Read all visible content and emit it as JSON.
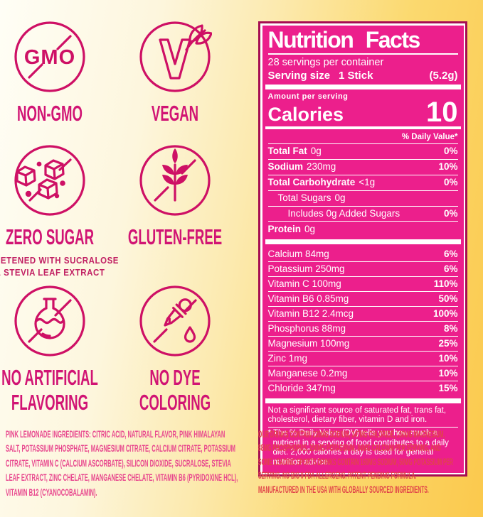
{
  "colors": {
    "panel_pink": "#ec1f8c",
    "panel_border": "#a60d52",
    "icon_stroke": "#ce1065",
    "badge_label": "#d11474",
    "ingredients_text": "#e8478e",
    "comparison_text": "#e14449",
    "background_yellow": "#fbc94d"
  },
  "badges": [
    {
      "label": "NON-GMO",
      "icon": "gmo-crossed-icon",
      "gmo_text": "GMO"
    },
    {
      "label": "VEGAN",
      "icon": "vegan-v-leaf-icon"
    },
    {
      "label": "ZERO SUGAR",
      "icon": "sugar-cubes-crossed-icon",
      "subcaption": [
        "SWEETENED WITH SUCRALOSE",
        "&  STEVIA LEAF EXTRACT"
      ]
    },
    {
      "label": "GLUTEN-FREE",
      "icon": "wheat-crossed-icon"
    },
    {
      "label": [
        "NO ARTIFICIAL",
        "FLAVORING"
      ],
      "icon": "flask-crossed-icon"
    },
    {
      "label": [
        "NO DYE",
        "COLORING"
      ],
      "icon": "dropper-crossed-icon"
    }
  ],
  "nutrition_facts": {
    "title": "Nutrition Facts",
    "servings_per_container": "28 servings per container",
    "serving_size_label": "Serving size",
    "serving_size_value": "1 Stick",
    "serving_size_weight": "(5.2g)",
    "amount_per_serving": "Amount per serving",
    "calories_label": "Calories",
    "calories_value": "10",
    "daily_value_header": "% Daily Value*",
    "rows": [
      {
        "label": "Total Fat",
        "amount": "0g",
        "dv": "0%",
        "bold": true,
        "indent": 0
      },
      {
        "label": "Sodium",
        "amount": "230mg",
        "dv": "10%",
        "bold": true,
        "indent": 0
      },
      {
        "label": "Total Carbohydrate",
        "amount": "<1g",
        "dv": "0%",
        "bold": true,
        "indent": 0
      },
      {
        "label": "Total Sugars",
        "amount": "0g",
        "dv": "",
        "bold": false,
        "indent": 1
      },
      {
        "label": "Includes 0g Added Sugars",
        "amount": "",
        "dv": "0%",
        "bold": false,
        "indent": 2
      },
      {
        "label": "Protein",
        "amount": "0g",
        "dv": "",
        "bold": true,
        "indent": 0
      }
    ],
    "micronutrients": [
      {
        "label": "Calcium 84mg",
        "dv": "6%"
      },
      {
        "label": "Potassium 250mg",
        "dv": "6%"
      },
      {
        "label": "Vitamin C 100mg",
        "dv": "110%"
      },
      {
        "label": "Vitamin B6 0.85mg",
        "dv": "50%"
      },
      {
        "label": "Vitamin B12 2.4mcg",
        "dv": "100%"
      },
      {
        "label": "Phosphorus 88mg",
        "dv": "8%"
      },
      {
        "label": "Magnesium 100mg",
        "dv": "25%"
      },
      {
        "label": "Zinc 1mg",
        "dv": "10%"
      },
      {
        "label": "Manganese 0.2mg",
        "dv": "10%"
      },
      {
        "label": "Chloride 347mg",
        "dv": "15%"
      }
    ],
    "not_significant_note": "Not a significant source of saturated fat, trans fat, cholesterol, dietary fiber, vitamin D and iron.",
    "dv_footnote": "* The % Daily Value (DV) tells you how much a nutrient in a serving of food contributes to a daily diet. 2,000 calories a day is used for general nutrition advice."
  },
  "footer": {
    "ingredients": [
      "PINK LEMONADE INGREDIENTS: CITRIC ACID, NATURAL FLAVOR, PINK HIMALAYAN",
      "SALT, POTASSIUM PHOSPHATE, MAGNESIUM CITRATE, CALCIUM CITRATE, POTASSIUM",
      "CITRATE, VITAMIN C (CALCIUM ASCORBATE), SILICON DIOXIDE, SUCRALOSE, STEVIA",
      "LEAF EXTRACT, ZINC CHELATE, MANGANESE CHELATE, VITAMIN B6 (PYRIDOXINE HCL),",
      "VITAMIN B12 (CYANOCOBALAMIN)."
    ],
    "comparison": [
      "OUR DRINKS CONTAIN 230MG SODIUM, 347MG CHLORIDE,  100MG MAGNESIUM,",
      "88MG PHOSPHORUS, 250MG POTASSIUM, 84MG CALCIUM PER SERVING,  AND",
      "SOME LEADING SPORTS DRINKS CONTAIN 160MG SODIUM, 50MG POTASSIUM PER",
      "SERVING. NO BIG 9 FDA ALLERGENS. PATENT PENDING FORMULA.",
      "MANUFACTURED IN THE USA WITH GLOBALLY SOURCED INGREDIENTS."
    ]
  }
}
